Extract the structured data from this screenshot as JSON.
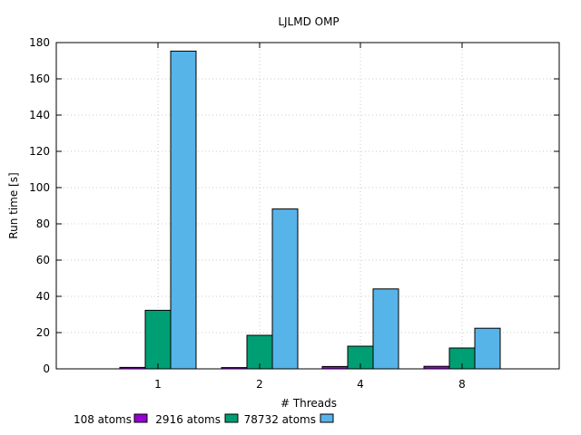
{
  "chart_data": {
    "type": "bar",
    "title": "LJLMD OMP",
    "xlabel": "# Threads",
    "ylabel": "Run time [s]",
    "categories": [
      "1",
      "2",
      "4",
      "8"
    ],
    "ylim": [
      0,
      180
    ],
    "yticks": [
      0,
      20,
      40,
      60,
      80,
      100,
      120,
      140,
      160,
      180
    ],
    "grid": true,
    "legend_position": "bottom-left",
    "series": [
      {
        "name": "108 atoms",
        "color": "#9400d3",
        "values": [
          0.8,
          0.7,
          1.3,
          1.4
        ]
      },
      {
        "name": "2916 atoms",
        "color": "#009e73",
        "values": [
          32.3,
          18.5,
          12.5,
          11.5
        ]
      },
      {
        "name": "78732 atoms",
        "color": "#56b4e9",
        "values": [
          175.3,
          88.2,
          44.1,
          22.4
        ]
      }
    ]
  }
}
